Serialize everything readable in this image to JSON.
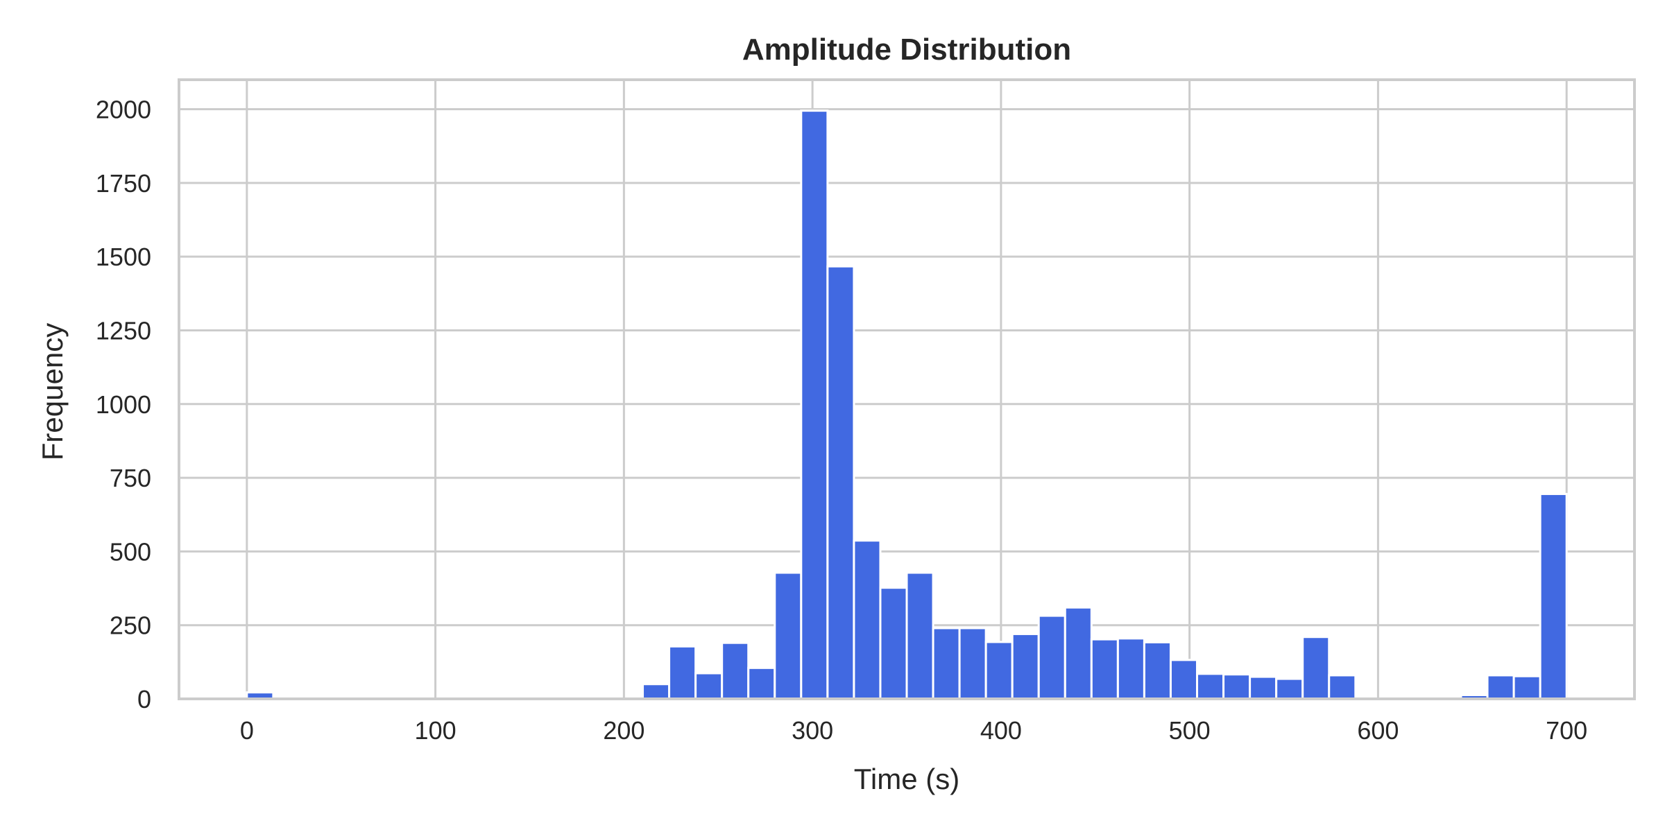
{
  "chart_data": {
    "type": "bar",
    "subtype": "histogram",
    "title": "Amplitude Distribution",
    "xlabel": "Time (s)",
    "ylabel": "Frequency",
    "xlim": [
      -36,
      736
    ],
    "ylim": [
      0,
      2100
    ],
    "xticks": [
      0,
      100,
      200,
      300,
      400,
      500,
      600,
      700
    ],
    "yticks": [
      0,
      250,
      500,
      750,
      1000,
      1250,
      1500,
      1750,
      2000
    ],
    "grid": true,
    "legend": "none",
    "bar_color": "#4169e1",
    "bin_width": 14,
    "bins": [
      {
        "x0": 0,
        "x1": 14,
        "value": 22
      },
      {
        "x0": 210,
        "x1": 224,
        "value": 50
      },
      {
        "x0": 224,
        "x1": 238,
        "value": 178
      },
      {
        "x0": 238,
        "x1": 252,
        "value": 87
      },
      {
        "x0": 252,
        "x1": 266,
        "value": 190
      },
      {
        "x0": 266,
        "x1": 280,
        "value": 105
      },
      {
        "x0": 280,
        "x1": 294,
        "value": 428
      },
      {
        "x0": 294,
        "x1": 308,
        "value": 1995
      },
      {
        "x0": 308,
        "x1": 322,
        "value": 1467
      },
      {
        "x0": 322,
        "x1": 336,
        "value": 537
      },
      {
        "x0": 336,
        "x1": 350,
        "value": 377
      },
      {
        "x0": 350,
        "x1": 364,
        "value": 428
      },
      {
        "x0": 364,
        "x1": 378,
        "value": 240
      },
      {
        "x0": 378,
        "x1": 392,
        "value": 240
      },
      {
        "x0": 392,
        "x1": 406,
        "value": 193
      },
      {
        "x0": 406,
        "x1": 420,
        "value": 220
      },
      {
        "x0": 420,
        "x1": 434,
        "value": 282
      },
      {
        "x0": 434,
        "x1": 448,
        "value": 310
      },
      {
        "x0": 448,
        "x1": 462,
        "value": 202
      },
      {
        "x0": 462,
        "x1": 476,
        "value": 205
      },
      {
        "x0": 476,
        "x1": 490,
        "value": 192
      },
      {
        "x0": 490,
        "x1": 504,
        "value": 132
      },
      {
        "x0": 504,
        "x1": 518,
        "value": 85
      },
      {
        "x0": 518,
        "x1": 532,
        "value": 83
      },
      {
        "x0": 532,
        "x1": 546,
        "value": 75
      },
      {
        "x0": 546,
        "x1": 560,
        "value": 68
      },
      {
        "x0": 560,
        "x1": 574,
        "value": 210
      },
      {
        "x0": 574,
        "x1": 588,
        "value": 80
      },
      {
        "x0": 644,
        "x1": 658,
        "value": 13
      },
      {
        "x0": 658,
        "x1": 672,
        "value": 80
      },
      {
        "x0": 672,
        "x1": 686,
        "value": 77
      },
      {
        "x0": 686,
        "x1": 700,
        "value": 695
      }
    ]
  }
}
